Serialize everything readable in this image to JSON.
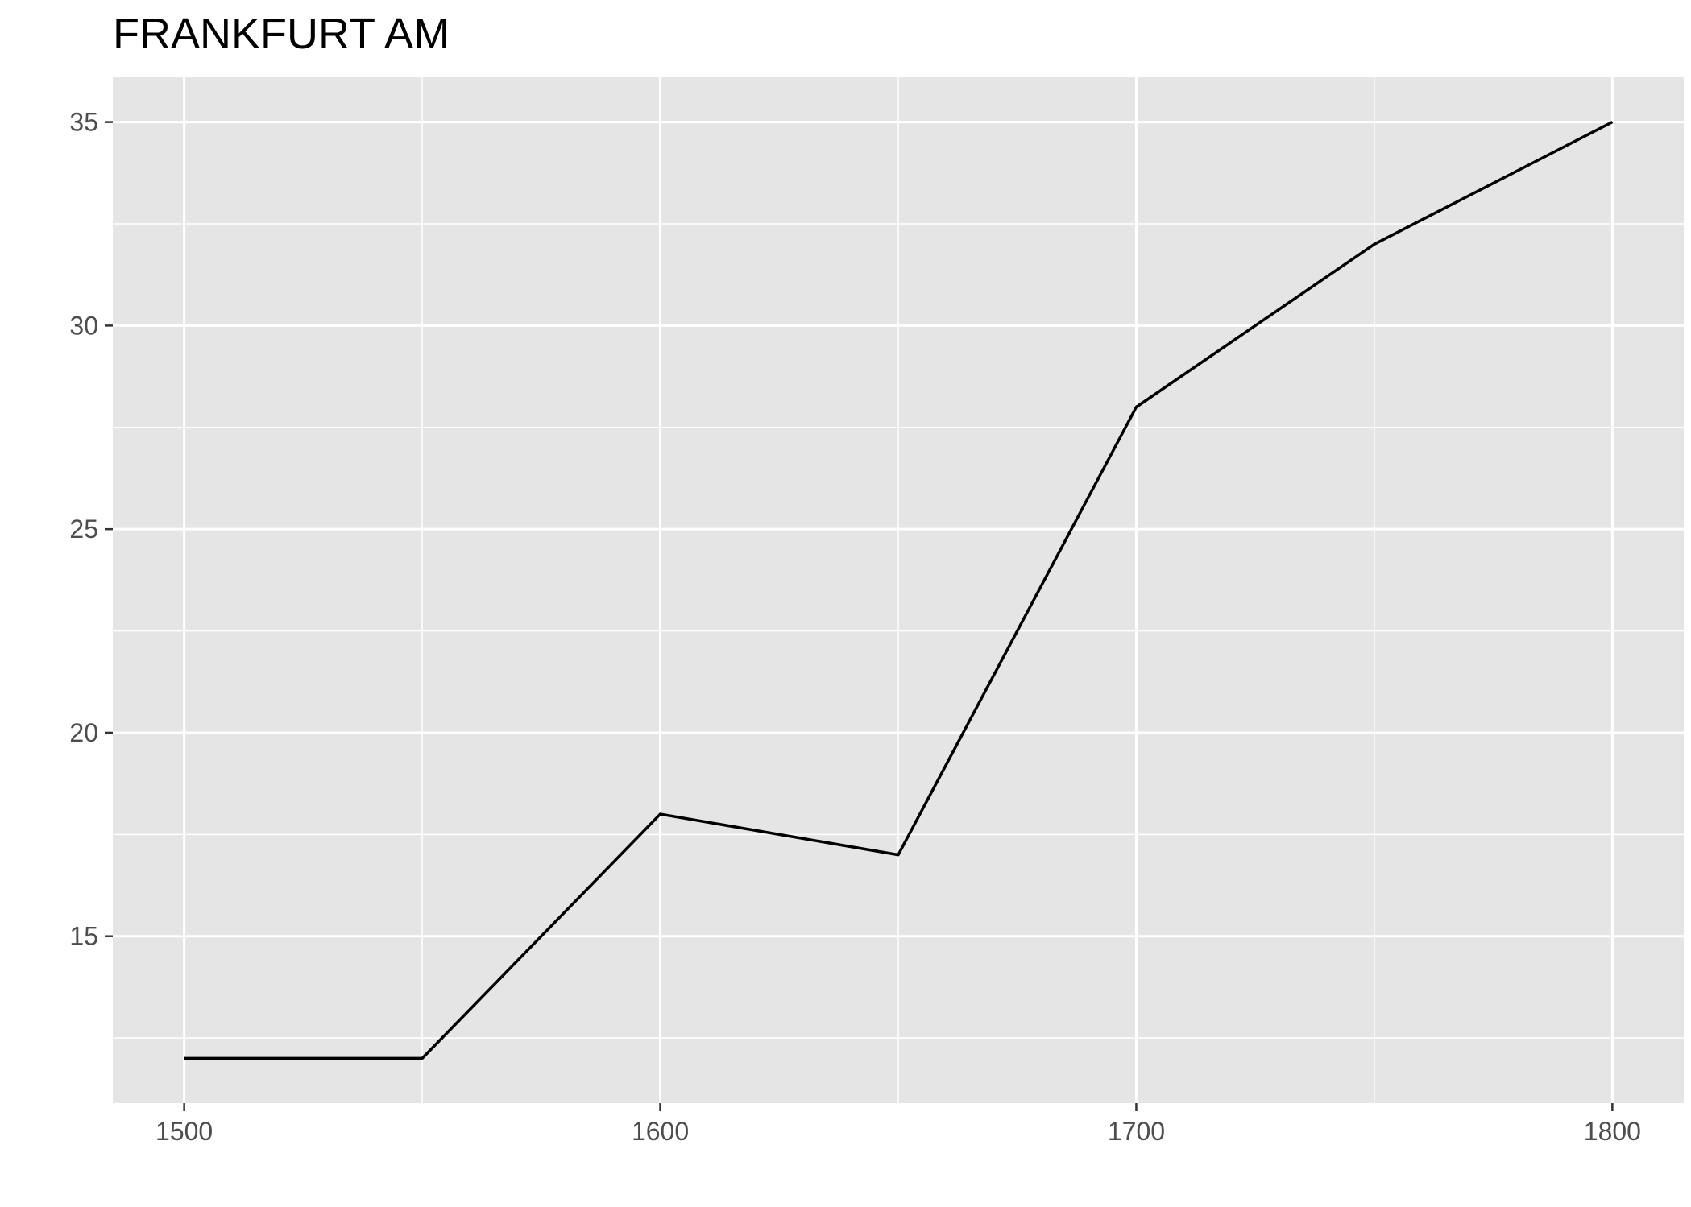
{
  "chart_data": {
    "type": "line",
    "title": "FRANKFURT AM",
    "xlabel": "",
    "ylabel": "",
    "x": [
      1500,
      1550,
      1600,
      1650,
      1700,
      1750,
      1800
    ],
    "series": [
      {
        "values": [
          12,
          12,
          18,
          17,
          28,
          32,
          35
        ]
      }
    ],
    "xlim": [
      1485,
      1815
    ],
    "ylim": [
      10.9,
      36.1
    ],
    "x_ticks": [
      1500,
      1600,
      1700,
      1800
    ],
    "x_minor_ticks": [
      1550,
      1650,
      1750
    ],
    "y_ticks": [
      15,
      20,
      25,
      30,
      35
    ],
    "y_minor_ticks": [
      12.5,
      17.5,
      22.5,
      27.5,
      32.5
    ],
    "grid": true,
    "legend": "none",
    "colors": {
      "panel_background": "#e5e5e5",
      "grid": "#ffffff",
      "line": "#000000",
      "tick_label": "#4d4d4d",
      "tick_mark": "#333333"
    }
  }
}
